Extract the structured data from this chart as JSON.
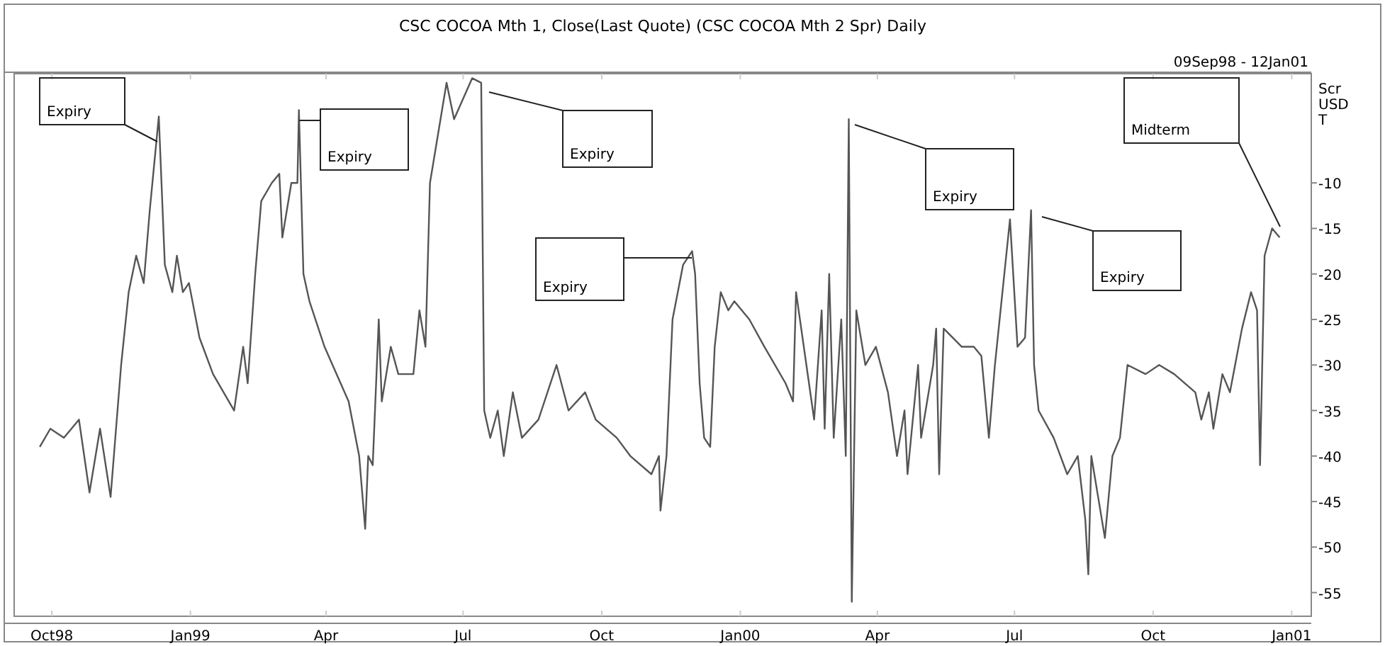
{
  "chart_data": {
    "type": "line",
    "title": "CSC COCOA Mth 1, Close(Last Quote) (CSC COCOA Mth 2 Spr) Daily",
    "ylabel": "Scr USD T",
    "x": [
      "1998-09-23",
      "1998-09-30",
      "1998-10-09",
      "1998-10-19",
      "1998-10-26",
      "1998-11-02",
      "1998-11-09",
      "1998-11-16",
      "1998-11-21",
      "1998-11-26",
      "1998-12-01",
      "1998-12-05",
      "1998-12-11",
      "1998-12-15",
      "1998-12-20",
      "1998-12-23",
      "1998-12-27",
      "1998-12-31",
      "1999-01-07",
      "1999-01-16",
      "1999-01-23",
      "1999-01-30",
      "1999-02-05",
      "1999-02-08",
      "1999-02-13",
      "1999-02-17",
      "1999-02-24",
      "1999-03-01",
      "1999-03-03",
      "1999-03-09",
      "1999-03-13",
      "1999-03-14",
      "1999-03-17",
      "1999-03-21",
      "1999-03-31",
      "1999-04-16",
      "1999-04-23",
      "1999-04-27",
      "1999-04-29",
      "1999-05-02",
      "1999-05-06",
      "1999-05-08",
      "1999-05-14",
      "1999-05-19",
      "1999-05-29",
      "1999-06-02",
      "1999-06-06",
      "1999-06-09",
      "1999-06-14",
      "1999-06-20",
      "1999-06-25",
      "1999-07-07",
      "1999-07-13",
      "1999-07-15",
      "1999-07-19",
      "1999-07-24",
      "1999-07-28",
      "1999-08-03",
      "1999-08-09",
      "1999-08-20",
      "1999-09-01",
      "1999-09-09",
      "1999-09-20",
      "1999-09-27",
      "1999-10-11",
      "1999-10-20",
      "1999-11-03",
      "1999-11-08",
      "1999-11-09",
      "1999-11-13",
      "1999-11-17",
      "1999-11-24",
      "1999-11-30",
      "1999-12-02",
      "1999-12-05",
      "1999-12-08",
      "1999-12-12",
      "1999-12-15",
      "1999-12-19",
      "1999-12-24",
      "1999-12-28",
      "2000-01-07",
      "2000-01-17",
      "2000-01-31",
      "2000-02-05",
      "2000-02-07",
      "2000-02-19",
      "2000-02-24",
      "2000-02-26",
      "2000-02-29",
      "2000-03-03",
      "2000-03-08",
      "2000-03-11",
      "2000-03-13",
      "2000-03-15",
      "2000-03-18",
      "2000-03-24",
      "2000-03-31",
      "2000-04-08",
      "2000-04-14",
      "2000-04-19",
      "2000-04-21",
      "2000-04-28",
      "2000-04-30",
      "2000-05-08",
      "2000-05-10",
      "2000-05-12",
      "2000-05-15",
      "2000-05-27",
      "2000-06-04",
      "2000-06-09",
      "2000-06-14",
      "2000-06-18",
      "2000-06-23",
      "2000-06-28",
      "2000-07-03",
      "2000-07-08",
      "2000-07-12",
      "2000-07-14",
      "2000-07-17",
      "2000-07-27",
      "2000-08-05",
      "2000-08-12",
      "2000-08-17",
      "2000-08-19",
      "2000-08-21",
      "2000-08-27",
      "2000-08-30",
      "2000-09-04",
      "2000-09-09",
      "2000-09-14",
      "2000-09-26",
      "2000-10-05",
      "2000-10-15",
      "2000-10-29",
      "2000-11-02",
      "2000-11-07",
      "2000-11-10",
      "2000-11-16",
      "2000-11-21",
      "2000-11-29",
      "2000-12-05",
      "2000-12-09",
      "2000-12-11",
      "2000-12-14",
      "2000-12-19",
      "2000-12-24"
    ],
    "series": [
      {
        "color": "#555555",
        "values": [
          -39,
          -37,
          -38,
          -36,
          -44,
          -37,
          -44.5,
          -30,
          -22,
          -18,
          -21,
          -13,
          -2.7,
          -19,
          -22,
          -18,
          -22,
          -21,
          -27,
          -31,
          -33,
          -35,
          -28,
          -32,
          -20,
          -12,
          -10,
          -9,
          -16,
          -10,
          -10,
          -2,
          -20,
          -23,
          -28,
          -34,
          -40,
          -48,
          -40,
          -41,
          -25,
          -34,
          -28,
          -31,
          -31,
          -24,
          -28,
          -10,
          -5,
          1,
          -3,
          1.5,
          1,
          -35,
          -38,
          -35,
          -40,
          -33,
          -38,
          -36,
          -30,
          -35,
          -33,
          -36,
          -38,
          -40,
          -42,
          -40,
          -46,
          -40,
          -25,
          -19,
          -17.5,
          -20,
          -32,
          -38,
          -39,
          -28,
          -22,
          -24,
          -23,
          -25,
          -28,
          -32,
          -34,
          -22,
          -36,
          -24,
          -37,
          -20,
          -38,
          -25,
          -40,
          -3,
          -56,
          -24,
          -30,
          -28,
          -33,
          -40,
          -35,
          -42,
          -30,
          -38,
          -30,
          -26,
          -42,
          -26,
          -28,
          -28,
          -29,
          -38,
          -30,
          -22,
          -14,
          -28,
          -27,
          -13,
          -30,
          -35,
          -38,
          -42,
          -40,
          -47,
          -53,
          -40,
          -46,
          -49,
          -40,
          -38,
          -30,
          -31,
          -30,
          -31,
          -33,
          -36,
          -33,
          -37,
          -31,
          -33,
          -26,
          -22,
          -24,
          -41,
          -18,
          -15,
          -16
        ]
      }
    ],
    "xlim": [
      "1998-09-06",
      "2001-01-14"
    ],
    "xticks": [
      {
        "value": "1998-10-01",
        "label": "Oct98"
      },
      {
        "value": "1999-01-01",
        "label": "Jan99"
      },
      {
        "value": "1999-04-01",
        "label": "Apr"
      },
      {
        "value": "1999-07-01",
        "label": "Jul"
      },
      {
        "value": "1999-10-01",
        "label": "Oct"
      },
      {
        "value": "2000-01-01",
        "label": "Jan00"
      },
      {
        "value": "2000-04-01",
        "label": "Apr"
      },
      {
        "value": "2000-07-01",
        "label": "Jul"
      },
      {
        "value": "2000-10-01",
        "label": "Oct"
      },
      {
        "value": "2001-01-01",
        "label": "Jan01"
      }
    ],
    "ylim": [
      -57.6,
      2
    ],
    "yticks": [
      -55,
      -50,
      -45,
      -40,
      -35,
      -30,
      -25,
      -20,
      -15,
      -10
    ],
    "annotations": [
      "09Sep98 - 12Jan01",
      "Expiry",
      "Expiry",
      "Expiry",
      "Expiry",
      "Expiry",
      "Expiry",
      "Midterm"
    ]
  }
}
